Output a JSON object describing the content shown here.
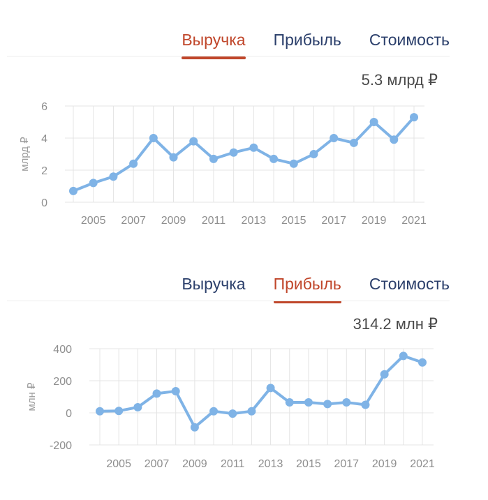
{
  "panels": [
    {
      "tabs": [
        "Выручка",
        "Прибыль",
        "Стоимость"
      ],
      "active_tab": "Выручка",
      "value_label": "5.3 млрд ₽"
    },
    {
      "tabs": [
        "Выручка",
        "Прибыль",
        "Стоимость"
      ],
      "active_tab": "Прибыль",
      "value_label": "314.2 млн ₽"
    }
  ],
  "colors": {
    "line": "#7fb3e6",
    "active_tab": "#c0462a",
    "tab": "#2b3f6b",
    "grid": "#e4e4e4"
  },
  "chart_data": [
    {
      "type": "line",
      "ylabel": "млрд ₽",
      "ylim": [
        0,
        6
      ],
      "yticks": [
        0,
        2,
        4,
        6
      ],
      "xlim": [
        2004,
        2021
      ],
      "xticks": [
        2005,
        2007,
        2009,
        2011,
        2013,
        2015,
        2017,
        2019,
        2021
      ],
      "grid": true,
      "series": [
        {
          "x": [
            2004,
            2005,
            2006,
            2007,
            2008,
            2009,
            2010,
            2011,
            2012,
            2013,
            2014,
            2015,
            2016,
            2017,
            2018,
            2019,
            2020,
            2021
          ],
          "y": [
            0.7,
            1.2,
            1.6,
            2.4,
            4.0,
            2.8,
            3.8,
            2.7,
            3.1,
            3.4,
            2.7,
            2.4,
            3.0,
            4.0,
            3.7,
            5.0,
            3.9,
            5.3
          ]
        }
      ]
    },
    {
      "type": "line",
      "ylabel": "млн ₽",
      "ylim": [
        -200,
        400
      ],
      "yticks": [
        -200,
        0,
        200,
        400
      ],
      "xlim": [
        2004,
        2021
      ],
      "xticks": [
        2005,
        2007,
        2009,
        2011,
        2013,
        2015,
        2017,
        2019,
        2021
      ],
      "grid": true,
      "series": [
        {
          "x": [
            2004,
            2005,
            2006,
            2007,
            2008,
            2009,
            2010,
            2011,
            2012,
            2013,
            2014,
            2015,
            2016,
            2017,
            2018,
            2019,
            2020,
            2021
          ],
          "y": [
            10,
            12,
            35,
            120,
            135,
            -90,
            10,
            -5,
            10,
            155,
            65,
            65,
            55,
            65,
            50,
            240,
            355,
            314
          ]
        }
      ]
    }
  ]
}
